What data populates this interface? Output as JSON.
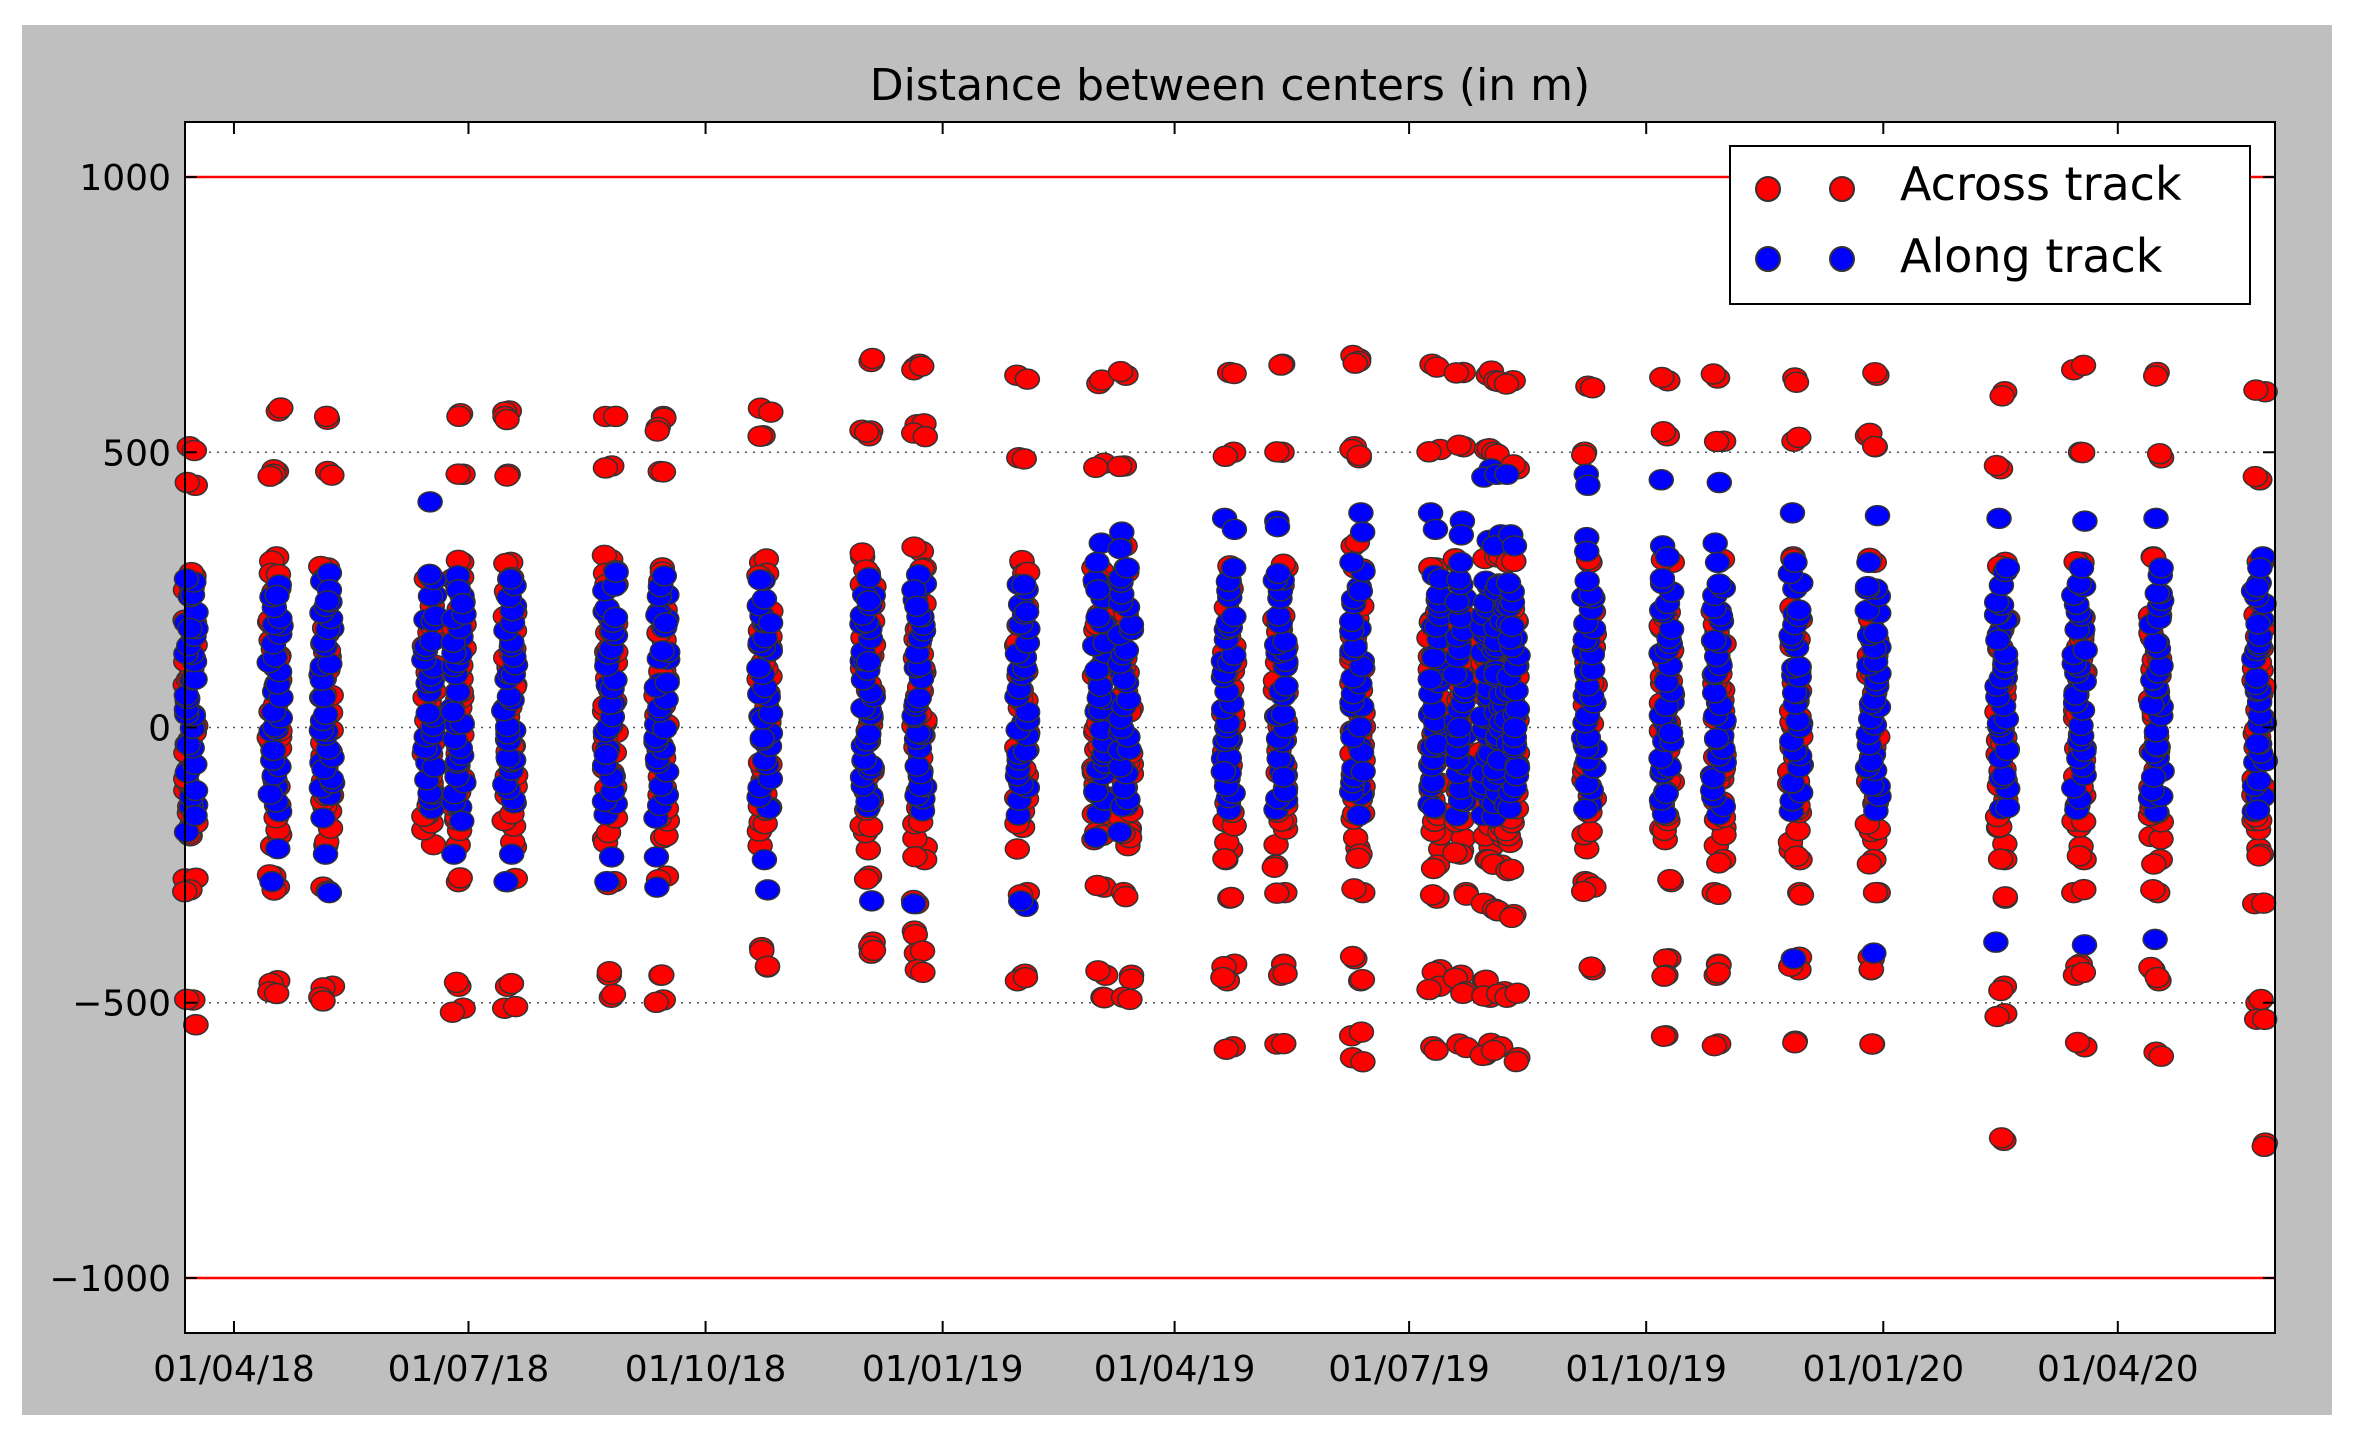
{
  "chart_data": {
    "type": "scatter",
    "title": "Distance between centers (in m)",
    "xlabel": "",
    "ylabel": "",
    "ylim": [
      -1100,
      1100
    ],
    "xlim": [
      "2018-03-13",
      "2020-06-01"
    ],
    "yticks": [
      1000,
      500,
      0,
      -500,
      -1000
    ],
    "ytick_labels": [
      "1000",
      "500",
      "0",
      "−500",
      "−1000"
    ],
    "xticks": [
      "2018-04-01",
      "2018-07-01",
      "2018-10-01",
      "2019-01-01",
      "2019-04-01",
      "2019-07-01",
      "2019-10-01",
      "2020-01-01",
      "2020-04-01"
    ],
    "xtick_labels": [
      "01/04/18",
      "01/07/18",
      "01/10/18",
      "01/01/19",
      "01/04/19",
      "01/07/19",
      "01/10/19",
      "01/01/20",
      "01/04/20"
    ],
    "threshold_lines": [
      1000,
      -1000
    ],
    "threshold_color": "#ff0000",
    "grid_y_at": [
      500,
      0,
      -500
    ],
    "legend_position": "top-right",
    "series": [
      {
        "name": "Across track",
        "color": "#ff0000"
      },
      {
        "name": "Along track",
        "color": "#0000ff"
      }
    ],
    "clusters": [
      {
        "date": "2018-03-15",
        "across": [
          510,
          440,
          275,
          250,
          -275,
          -295,
          -495,
          -540
        ],
        "along": [
          270,
          180,
          -190,
          -160
        ]
      },
      {
        "date": "2018-04-17",
        "across": [
          575,
          465,
          460,
          310,
          280,
          250,
          -290,
          -270,
          -460,
          -480
        ],
        "along": [
          240,
          -280,
          -220
        ]
      },
      {
        "date": "2018-05-07",
        "across": [
          560,
          465,
          290,
          270,
          -290,
          -470,
          -490
        ],
        "along": [
          250,
          230,
          -300,
          -230
        ]
      },
      {
        "date": "2018-06-16",
        "across": [
          270
        ],
        "along": [
          410
        ]
      },
      {
        "date": "2018-06-27",
        "across": [
          570,
          460,
          300,
          270,
          -280,
          -470,
          -510
        ],
        "along": [
          250,
          225,
          -230,
          -170
        ]
      },
      {
        "date": "2018-07-17",
        "across": [
          575,
          565,
          460,
          300,
          270,
          240,
          -280,
          -470,
          -510
        ],
        "along": [
          -280,
          -230
        ]
      },
      {
        "date": "2018-08-25",
        "across": [
          565,
          475,
          305,
          280,
          260,
          -280,
          -450,
          -490
        ],
        "along": [
          200,
          -235,
          -280
        ]
      },
      {
        "date": "2018-09-14",
        "across": [
          565,
          545,
          465,
          290,
          260,
          -270,
          -450,
          -495
        ],
        "along": [
          190,
          -235,
          -290
        ]
      },
      {
        "date": "2018-10-24",
        "across": [
          580,
          530,
          300,
          280,
          150,
          140,
          -400,
          -435
        ],
        "along": [
          190,
          -240,
          -295
        ]
      },
      {
        "date": "2018-12-03",
        "across": [
          665,
          540,
          530,
          310,
          280,
          260,
          -270,
          -390,
          -410
        ],
        "along": [
          230,
          120,
          -315
        ]
      },
      {
        "date": "2018-12-23",
        "across": [
          660,
          650,
          550,
          535,
          320,
          290,
          -240,
          -320,
          -370,
          -410,
          -440
        ],
        "along": [
          250,
          220,
          -320
        ]
      },
      {
        "date": "2019-02-01",
        "across": [
          640,
          490,
          300,
          280,
          -300,
          -450,
          -460
        ],
        "along": [
          210,
          -325,
          -315
        ]
      },
      {
        "date": "2019-03-03",
        "across": [
          625,
          480,
          290,
          270,
          -190,
          -290,
          -450,
          -490
        ],
        "along": [
          335,
          300,
          250,
          -200
        ]
      },
      {
        "date": "2019-03-13",
        "across": [
          640,
          475,
          330,
          290,
          -200,
          -300,
          -450,
          -490
        ],
        "along": [
          355,
          325,
          290,
          -190
        ]
      },
      {
        "date": "2019-04-22",
        "across": [
          645,
          500,
          290,
          260,
          -240,
          -310,
          -430,
          -460,
          -580
        ],
        "along": [
          380,
          360,
          290,
          -80
        ]
      },
      {
        "date": "2019-05-12",
        "across": [
          660,
          500,
          290,
          260,
          -250,
          -300,
          -430,
          -450,
          -575
        ],
        "along": [
          375,
          365,
          280,
          -90
        ]
      },
      {
        "date": "2019-06-11",
        "across": [
          670,
          665,
          510,
          490,
          330,
          290,
          -230,
          -300,
          -420,
          -460,
          -560,
          -600
        ],
        "along": [
          390,
          355,
          300,
          -80
        ]
      },
      {
        "date": "2019-07-11",
        "across": [
          660,
          505,
          290,
          -250,
          -310,
          -440,
          -470,
          -580
        ],
        "along": [
          390,
          360,
          270,
          -30
        ]
      },
      {
        "date": "2019-07-21",
        "across": [
          645,
          510,
          300,
          -230,
          -300,
          -450,
          -480,
          -575
        ],
        "along": [
          375,
          350,
          300,
          0
        ]
      },
      {
        "date": "2019-07-31",
        "across": [
          640,
          505,
          310,
          -240,
          -320,
          -460,
          -490,
          -580,
          -595
        ],
        "along": [
          470,
          455,
          340,
          20
        ]
      },
      {
        "date": "2019-08-05",
        "across": [
          630,
          500,
          310,
          -250,
          -330,
          -480,
          -580
        ],
        "along": [
          460,
          350,
          330,
          10
        ]
      },
      {
        "date": "2019-08-10",
        "across": [
          630,
          470,
          300,
          -260,
          -340,
          -490,
          -600
        ],
        "along": [
          460,
          350,
          330,
          0
        ]
      },
      {
        "date": "2019-09-09",
        "across": [
          620,
          500,
          300,
          -280,
          -290,
          -440
        ],
        "along": [
          460,
          440,
          345,
          320
        ]
      },
      {
        "date": "2019-10-09",
        "across": [
          630,
          530,
          300,
          -280,
          -420,
          -450,
          -560
        ],
        "along": [
          450,
          330,
          310,
          -10
        ]
      },
      {
        "date": "2019-10-29",
        "across": [
          635,
          520,
          300,
          -240,
          -300,
          -430,
          -450,
          -575
        ],
        "along": [
          445,
          335,
          300,
          -20
        ]
      },
      {
        "date": "2019-11-28",
        "across": [
          635,
          520,
          310,
          -240,
          -300,
          -420,
          -440,
          -570
        ],
        "along": [
          390,
          300,
          -420
        ]
      },
      {
        "date": "2019-12-28",
        "across": [
          640,
          530,
          510,
          300,
          -240,
          -300,
          -420,
          -440,
          -575
        ],
        "along": [
          385,
          300,
          -410
        ]
      },
      {
        "date": "2020-02-16",
        "across": [
          610,
          470,
          300,
          -240,
          -310,
          -470,
          -520,
          -750
        ],
        "along": [
          380,
          290,
          -390
        ]
      },
      {
        "date": "2020-03-17",
        "across": [
          650,
          500,
          300,
          -240,
          -300,
          -430,
          -450,
          -580
        ],
        "along": [
          375,
          290,
          -395
        ]
      },
      {
        "date": "2020-04-16",
        "across": [
          645,
          490,
          310,
          -240,
          -300,
          -440,
          -460,
          -590
        ],
        "along": [
          380,
          290,
          -385
        ]
      },
      {
        "date": "2020-05-26",
        "across": [
          610,
          450,
          300,
          -230,
          -320,
          -500,
          -530,
          -755
        ],
        "along": [
          310,
          290,
          -150
        ]
      }
    ]
  }
}
